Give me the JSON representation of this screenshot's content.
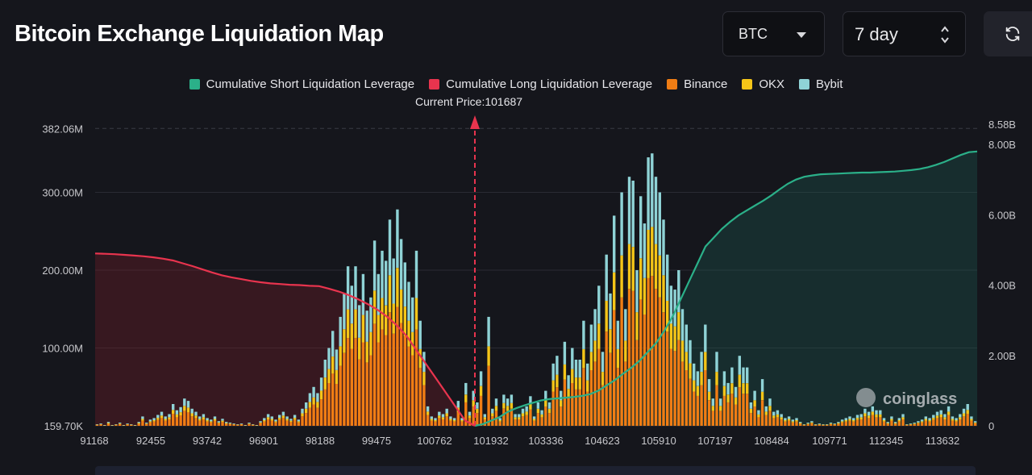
{
  "header": {
    "title": "Bitcoin Exchange Liquidation Map",
    "coin_select": "BTC",
    "range_select": "7 day",
    "refresh_icon": "refresh-icon"
  },
  "watermark": "coinglass",
  "chart_data": {
    "type": "bar",
    "title": "Bitcoin Exchange Liquidation Map",
    "current_price_label": "Current Price:101687",
    "current_price": 101687,
    "legend": [
      {
        "name": "Cumulative Short Liquidation Leverage",
        "color": "#2bb089"
      },
      {
        "name": "Cumulative Long Liquidation Leverage",
        "color": "#e8344e"
      },
      {
        "name": "Binance",
        "color": "#f07d14"
      },
      {
        "name": "OKX",
        "color": "#f5c518"
      },
      {
        "name": "Bybit",
        "color": "#8fd3d6"
      }
    ],
    "x_ticks": [
      "91168",
      "92455",
      "93742",
      "96901",
      "98188",
      "99475",
      "100762",
      "101932",
      "103336",
      "104623",
      "105910",
      "107197",
      "108484",
      "109771",
      "112345",
      "113632"
    ],
    "y_left_ticks": [
      "382.06M",
      "300.00M",
      "200.00M",
      "100.00M",
      "159.70K"
    ],
    "y_left_values": [
      382.06,
      300,
      200,
      100,
      0
    ],
    "y_left_max": 400,
    "y_right_ticks": [
      "8.58B",
      "8.00B",
      "6.00B",
      "4.00B",
      "2.00B",
      "0"
    ],
    "y_right_values": [
      8.58,
      8.0,
      6.0,
      4.0,
      2.0,
      0
    ],
    "y_right_max": 8.85,
    "stack_order": [
      "Binance",
      "OKX",
      "Bybit"
    ],
    "bars_total_M": [
      2,
      3,
      1,
      5,
      1,
      2,
      4,
      1,
      3,
      2,
      1,
      5,
      12,
      4,
      8,
      10,
      14,
      18,
      12,
      15,
      28,
      20,
      24,
      35,
      32,
      22,
      18,
      12,
      15,
      10,
      8,
      12,
      6,
      9,
      5,
      4,
      3,
      2,
      3,
      1,
      4,
      2,
      1,
      6,
      10,
      15,
      12,
      8,
      14,
      18,
      12,
      9,
      14,
      8,
      22,
      30,
      42,
      50,
      42,
      62,
      85,
      100,
      122,
      98,
      140,
      170,
      205,
      180,
      205,
      155,
      195,
      148,
      165,
      238,
      195,
      225,
      212,
      265,
      215,
      278,
      240,
      210,
      185,
      165,
      225,
      135,
      95,
      25,
      12,
      10,
      18,
      15,
      22,
      12,
      10,
      32,
      10,
      55,
      18,
      45,
      30,
      70,
      15,
      140,
      22,
      35,
      10,
      40,
      35,
      40,
      15,
      15,
      22,
      25,
      38,
      12,
      30,
      20,
      45,
      30,
      80,
      90,
      45,
      108,
      65,
      100,
      85,
      85,
      135,
      80,
      130,
      150,
      180,
      95,
      220,
      170,
      270,
      135,
      300,
      150,
      320,
      315,
      200,
      295,
      260,
      345,
      350,
      320,
      300,
      265,
      220,
      180,
      175,
      200,
      150,
      130,
      110,
      80,
      70,
      95,
      130,
      60,
      35,
      95,
      35,
      70,
      55,
      75,
      50,
      90,
      75,
      75,
      30,
      45,
      20,
      60,
      25,
      35,
      18,
      20,
      15,
      10,
      12,
      8,
      10,
      5,
      2,
      4,
      6,
      2,
      3,
      2,
      2,
      4,
      3,
      5,
      8,
      10,
      12,
      10,
      14,
      15,
      22,
      18,
      25,
      20,
      20,
      10,
      5,
      12,
      5,
      10,
      15,
      2,
      3,
      4,
      6,
      8,
      12,
      10,
      14,
      18,
      20,
      15,
      25,
      12,
      10,
      15,
      22,
      28,
      12,
      6
    ],
    "cum_long_B": [
      4.9,
      4.89,
      4.88,
      4.86,
      4.84,
      4.82,
      4.79,
      4.75,
      4.7,
      4.62,
      4.54,
      4.45,
      4.36,
      4.28,
      4.22,
      4.17,
      4.12,
      4.08,
      4.05,
      4.03,
      4.01,
      4.0,
      3.98,
      3.97,
      3.9,
      3.82,
      3.72,
      3.6,
      3.46,
      3.3,
      3.1,
      2.85,
      2.55,
      2.15,
      1.75,
      1.35,
      0.95,
      0.55,
      0.15,
      0.0
    ],
    "cum_short_B": [
      0.0,
      0.05,
      0.15,
      0.25,
      0.4,
      0.5,
      0.58,
      0.65,
      0.72,
      0.76,
      0.78,
      0.8,
      0.82,
      0.85,
      0.9,
      1.0,
      1.15,
      1.3,
      1.48,
      1.65,
      1.85,
      2.1,
      2.35,
      2.7,
      3.1,
      3.6,
      4.1,
      4.6,
      5.1,
      5.35,
      5.6,
      5.8,
      5.98,
      6.12,
      6.26,
      6.4,
      6.55,
      6.72,
      6.88,
      7.0,
      7.08,
      7.12,
      7.15,
      7.16,
      7.17,
      7.18,
      7.19,
      7.2,
      7.2,
      7.21,
      7.22,
      7.23,
      7.25,
      7.27,
      7.3,
      7.35,
      7.42,
      7.5,
      7.6,
      7.7,
      7.78,
      7.8
    ]
  }
}
